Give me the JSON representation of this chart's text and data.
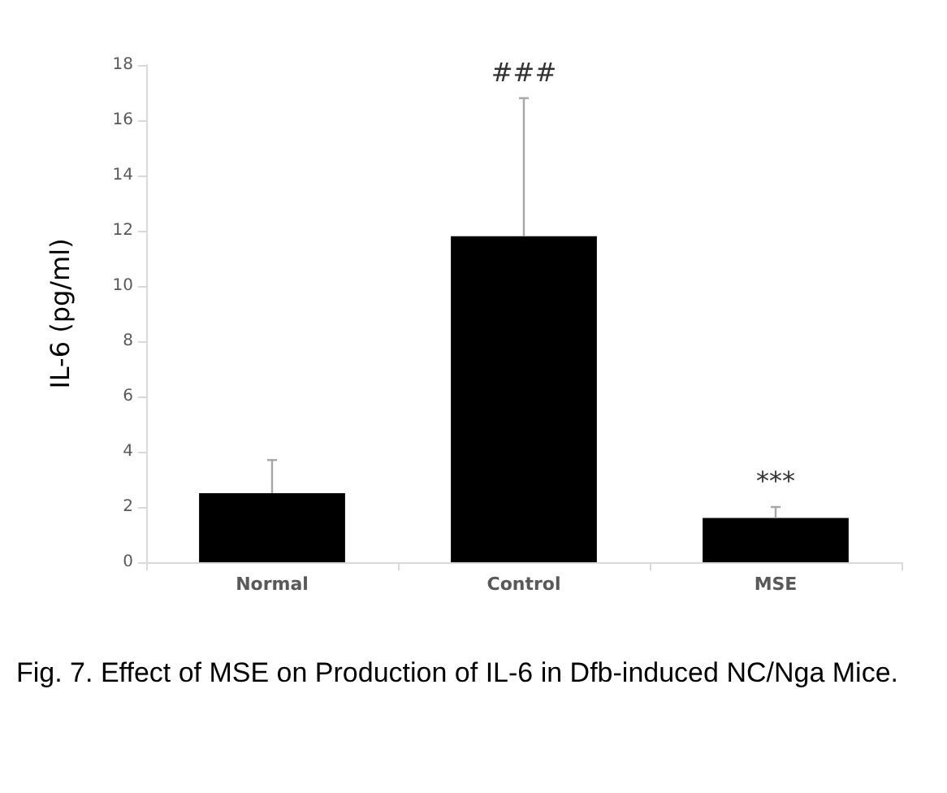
{
  "chart_data": {
    "type": "bar",
    "ylabel": "IL-6 (pg/ml)",
    "categories": [
      "Normal",
      "Control",
      "MSE"
    ],
    "series": [
      {
        "color": "#000000",
        "values": [
          2.5,
          11.8,
          1.6
        ],
        "errors": [
          [
            2.5,
            3.7
          ],
          [
            11.8,
            16.8
          ],
          [
            1.6,
            2.0
          ]
        ]
      }
    ],
    "ylim": [
      0,
      18
    ],
    "yticks": [
      0,
      2,
      4,
      6,
      8,
      10,
      12,
      14,
      16,
      18
    ],
    "grid": false,
    "annotations": [
      {
        "text": "###",
        "x": "Control",
        "y": 16.8
      },
      {
        "text": "***",
        "x": "MSE",
        "y": 2.0
      },
      "Fig. 7. Effect of MSE on Production of IL-6 in Dfb-induced NC/Nga Mice."
    ]
  }
}
